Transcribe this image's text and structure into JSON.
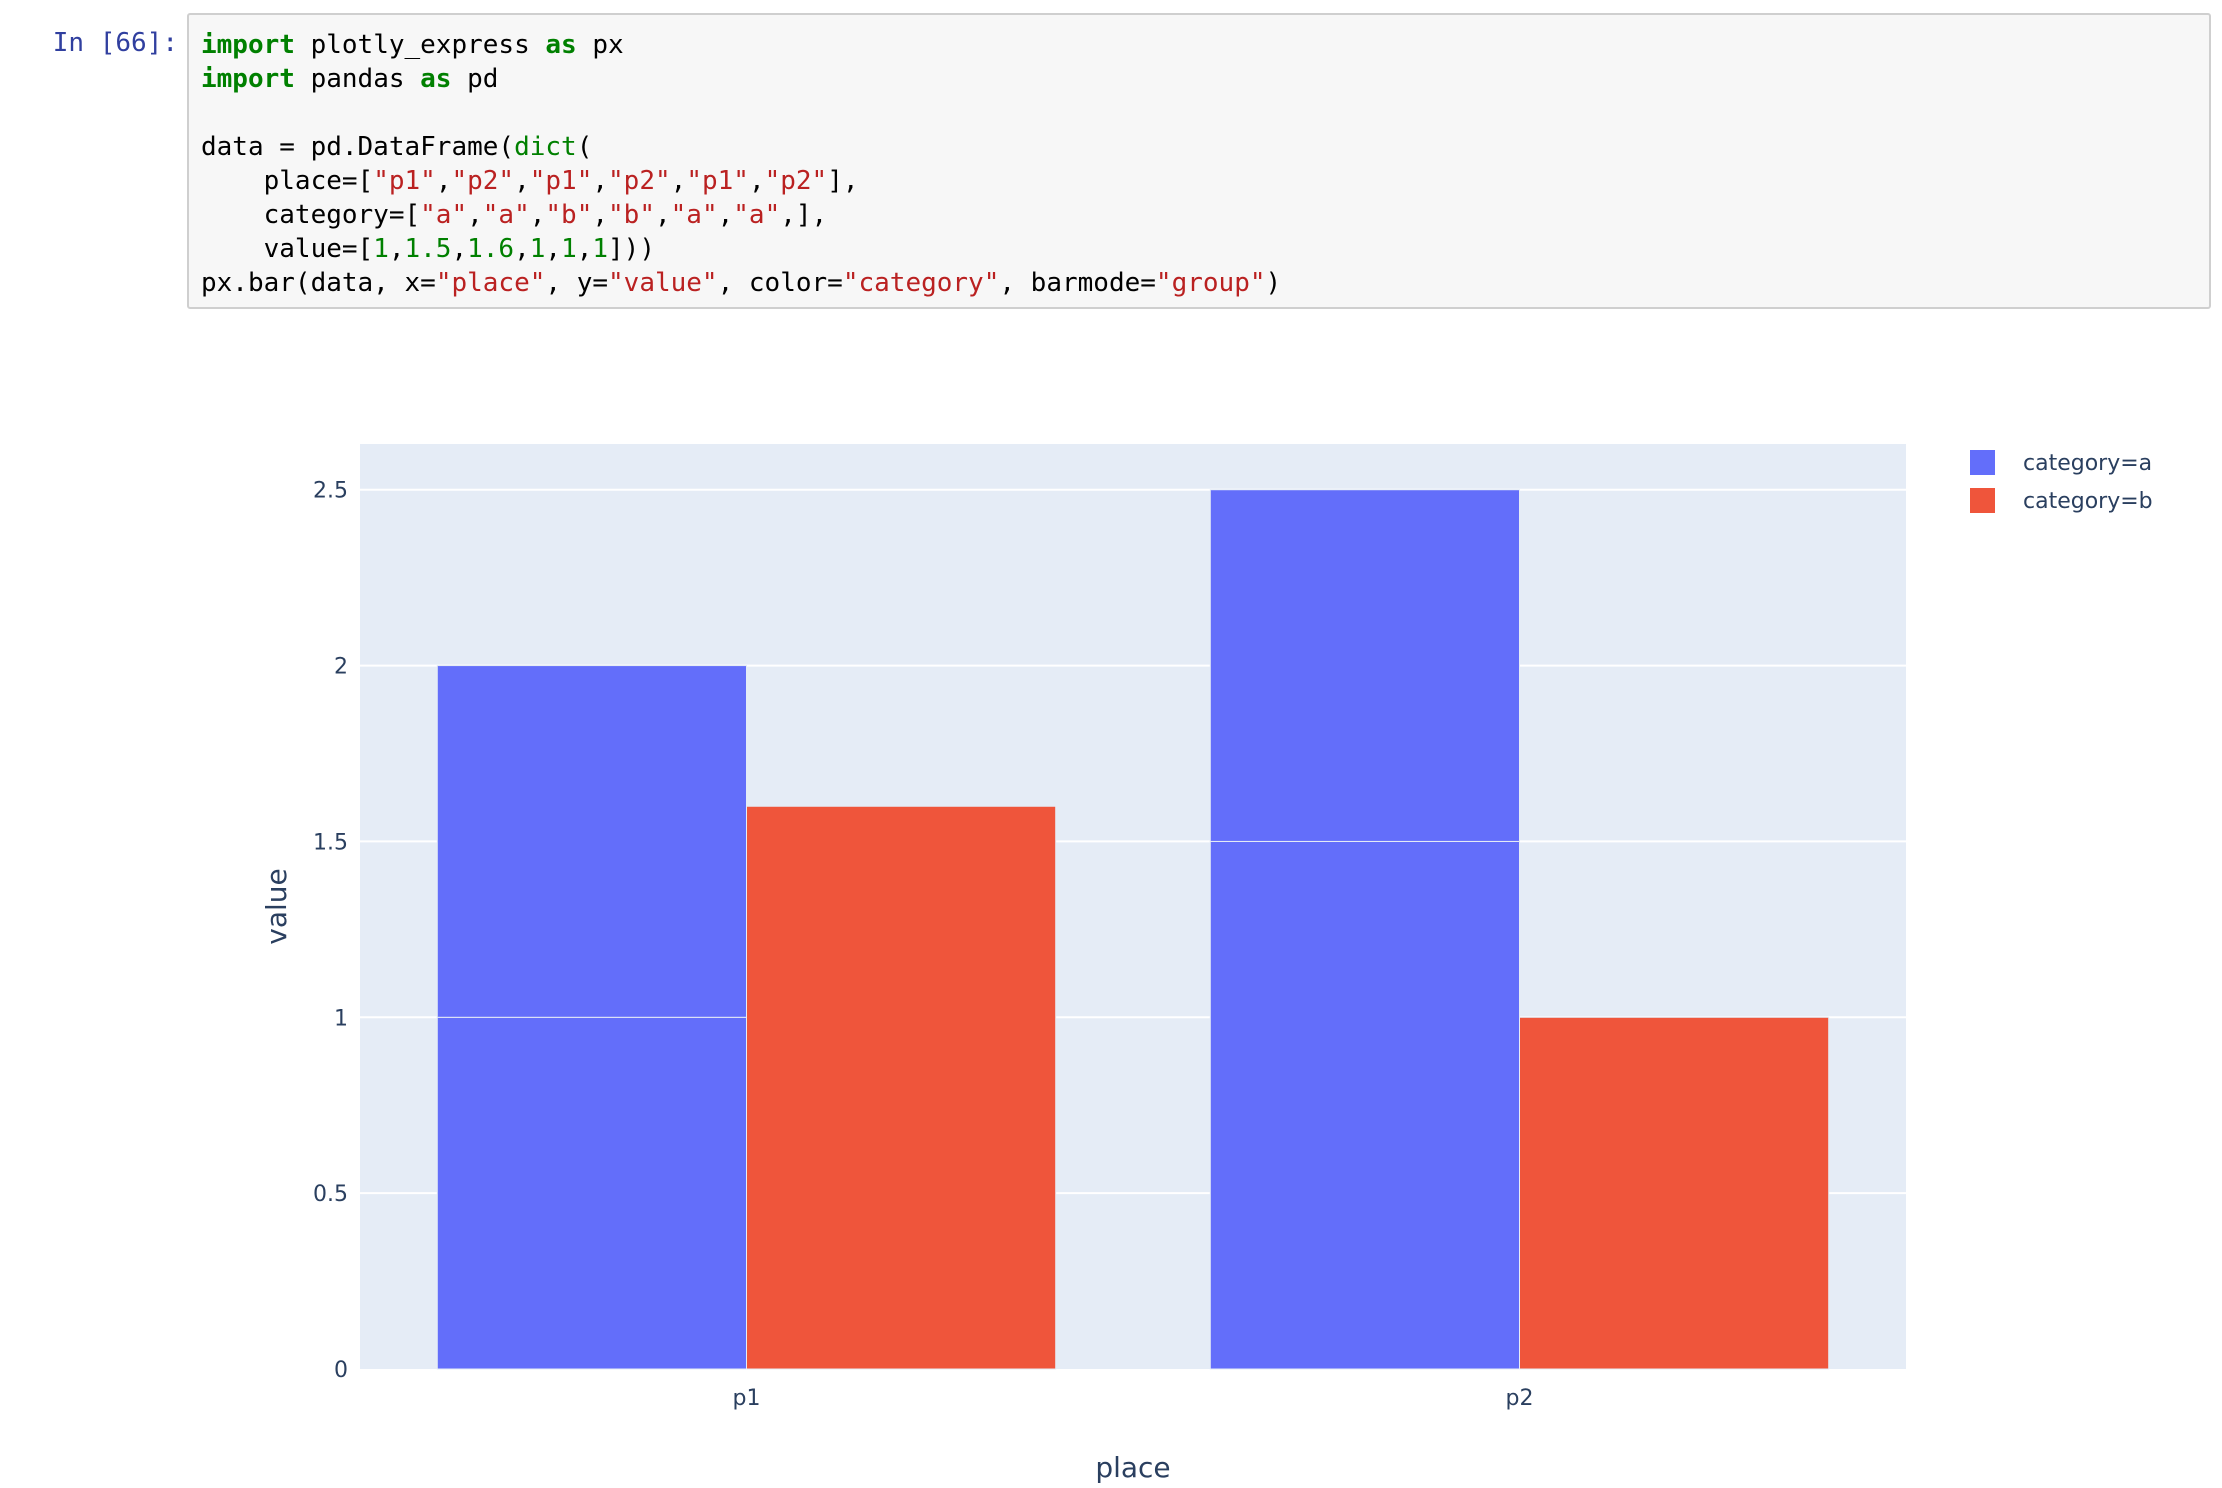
{
  "cell": {
    "prompt": "In [66]:",
    "lines": [
      [
        {
          "t": "import",
          "c": "kw"
        },
        {
          "t": " plotly_express "
        },
        {
          "t": "as",
          "c": "kw"
        },
        {
          "t": " px"
        }
      ],
      [
        {
          "t": "import",
          "c": "kw"
        },
        {
          "t": " pandas "
        },
        {
          "t": "as",
          "c": "kw"
        },
        {
          "t": " pd"
        }
      ],
      [],
      [
        {
          "t": "data = pd.DataFrame("
        },
        {
          "t": "dict",
          "c": "bi"
        },
        {
          "t": "("
        }
      ],
      [
        {
          "t": "    place=["
        },
        {
          "t": "\"p1\"",
          "c": "str"
        },
        {
          "t": ","
        },
        {
          "t": "\"p2\"",
          "c": "str"
        },
        {
          "t": ","
        },
        {
          "t": "\"p1\"",
          "c": "str"
        },
        {
          "t": ","
        },
        {
          "t": "\"p2\"",
          "c": "str"
        },
        {
          "t": ","
        },
        {
          "t": "\"p1\"",
          "c": "str"
        },
        {
          "t": ","
        },
        {
          "t": "\"p2\"",
          "c": "str"
        },
        {
          "t": "],"
        }
      ],
      [
        {
          "t": "    category=["
        },
        {
          "t": "\"a\"",
          "c": "str"
        },
        {
          "t": ","
        },
        {
          "t": "\"a\"",
          "c": "str"
        },
        {
          "t": ","
        },
        {
          "t": "\"b\"",
          "c": "str"
        },
        {
          "t": ","
        },
        {
          "t": "\"b\"",
          "c": "str"
        },
        {
          "t": ","
        },
        {
          "t": "\"a\"",
          "c": "str"
        },
        {
          "t": ","
        },
        {
          "t": "\"a\"",
          "c": "str"
        },
        {
          "t": ",],"
        }
      ],
      [
        {
          "t": "    value=["
        },
        {
          "t": "1",
          "c": "num"
        },
        {
          "t": ","
        },
        {
          "t": "1.5",
          "c": "num"
        },
        {
          "t": ","
        },
        {
          "t": "1.6",
          "c": "num"
        },
        {
          "t": ","
        },
        {
          "t": "1",
          "c": "num"
        },
        {
          "t": ","
        },
        {
          "t": "1",
          "c": "num"
        },
        {
          "t": ","
        },
        {
          "t": "1",
          "c": "num"
        },
        {
          "t": "]))"
        }
      ],
      [
        {
          "t": "px.bar(data, x="
        },
        {
          "t": "\"place\"",
          "c": "str"
        },
        {
          "t": ", y="
        },
        {
          "t": "\"value\"",
          "c": "str"
        },
        {
          "t": ", color="
        },
        {
          "t": "\"category\"",
          "c": "str"
        },
        {
          "t": ", barmode="
        },
        {
          "t": "\"group\"",
          "c": "str"
        },
        {
          "t": ")"
        }
      ]
    ]
  },
  "colors": {
    "plot_bg": "#e5ecf6",
    "grid": "#ffffff",
    "text": "#2a3f5f",
    "series_a": "#636efa",
    "series_b": "#ef553b"
  },
  "chart_data": {
    "type": "bar",
    "barmode": "group",
    "title": "",
    "xlabel": "place",
    "ylabel": "value",
    "categories": [
      "p1",
      "p2"
    ],
    "ylim": [
      0,
      2.63
    ],
    "yticks": [
      0,
      0.5,
      1,
      1.5,
      2,
      2.5
    ],
    "ytick_labels": [
      "0",
      "0.5",
      "1",
      "1.5",
      "2",
      "2.5"
    ],
    "grid": true,
    "legend_position": "top-right",
    "series": [
      {
        "name": "category=a",
        "color": "#636efa",
        "segments": [
          [
            1,
            1
          ],
          [
            1.5,
            1
          ]
        ]
      },
      {
        "name": "category=b",
        "color": "#ef553b",
        "segments": [
          [
            1.6
          ],
          [
            1
          ]
        ]
      }
    ]
  }
}
